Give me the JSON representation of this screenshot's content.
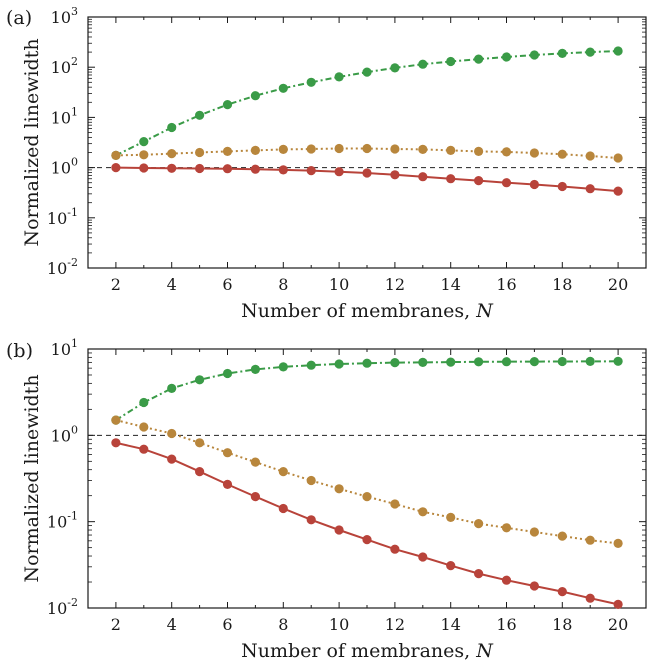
{
  "chart_data": [
    {
      "type": "line",
      "panel_label": "(a)",
      "xlabel": "Number of membranes, ",
      "xlabel_var": "N",
      "ylabel": "Normalized linewidth",
      "yscale": "log",
      "xlim": [
        1,
        21
      ],
      "ylim": [
        0.01,
        1000
      ],
      "x": [
        2,
        3,
        4,
        5,
        6,
        7,
        8,
        9,
        10,
        11,
        12,
        13,
        14,
        15,
        16,
        17,
        18,
        19,
        20
      ],
      "xticks": [
        "2",
        "4",
        "6",
        "8",
        "10",
        "12",
        "14",
        "16",
        "18",
        "20"
      ],
      "yticks": [
        {
          "base": "10",
          "exp": "-2"
        },
        {
          "base": "10",
          "exp": "-1"
        },
        {
          "base": "10",
          "exp": "0"
        },
        {
          "base": "10",
          "exp": "1"
        },
        {
          "base": "10",
          "exp": "2"
        },
        {
          "base": "10",
          "exp": "3"
        }
      ],
      "reference_line": 1,
      "grid": false,
      "series": [
        {
          "color": "#3a9b47",
          "style": "dashdot",
          "values": [
            1.75,
            3.3,
            6.3,
            11,
            18,
            27,
            38,
            50,
            64,
            80,
            97,
            115,
            130,
            145,
            160,
            175,
            188,
            200,
            210
          ]
        },
        {
          "color": "#b8863c",
          "style": "dotted",
          "values": [
            1.75,
            1.8,
            1.9,
            2.0,
            2.1,
            2.2,
            2.3,
            2.35,
            2.4,
            2.4,
            2.35,
            2.3,
            2.2,
            2.1,
            2.05,
            1.95,
            1.85,
            1.7,
            1.55
          ]
        },
        {
          "color": "#b8433a",
          "style": "solid",
          "values": [
            1.0,
            0.98,
            0.97,
            0.96,
            0.95,
            0.93,
            0.9,
            0.87,
            0.83,
            0.78,
            0.72,
            0.66,
            0.6,
            0.55,
            0.5,
            0.46,
            0.42,
            0.38,
            0.34
          ]
        }
      ]
    },
    {
      "type": "line",
      "panel_label": "(b)",
      "xlabel": "Number of membranes, ",
      "xlabel_var": "N",
      "ylabel": "Normalized linewidth",
      "yscale": "log",
      "xlim": [
        1,
        21
      ],
      "ylim": [
        0.01,
        10
      ],
      "x": [
        2,
        3,
        4,
        5,
        6,
        7,
        8,
        9,
        10,
        11,
        12,
        13,
        14,
        15,
        16,
        17,
        18,
        19,
        20
      ],
      "xticks": [
        "2",
        "4",
        "6",
        "8",
        "10",
        "12",
        "14",
        "16",
        "18",
        "20"
      ],
      "yticks": [
        {
          "base": "10",
          "exp": "-2"
        },
        {
          "base": "10",
          "exp": "-1"
        },
        {
          "base": "10",
          "exp": "0"
        },
        {
          "base": "10",
          "exp": "1"
        }
      ],
      "reference_line": 1,
      "grid": false,
      "series": [
        {
          "color": "#3a9b47",
          "style": "dashdot",
          "values": [
            1.5,
            2.4,
            3.5,
            4.4,
            5.2,
            5.8,
            6.2,
            6.5,
            6.7,
            6.85,
            6.95,
            7.0,
            7.05,
            7.1,
            7.12,
            7.15,
            7.17,
            7.18,
            7.2
          ]
        },
        {
          "color": "#b8863c",
          "style": "dotted",
          "values": [
            1.5,
            1.25,
            1.05,
            0.82,
            0.63,
            0.49,
            0.38,
            0.3,
            0.24,
            0.195,
            0.16,
            0.13,
            0.112,
            0.095,
            0.085,
            0.076,
            0.068,
            0.061,
            0.056
          ]
        },
        {
          "color": "#b8433a",
          "style": "solid",
          "values": [
            0.82,
            0.69,
            0.53,
            0.38,
            0.27,
            0.195,
            0.142,
            0.105,
            0.08,
            0.062,
            0.048,
            0.039,
            0.031,
            0.025,
            0.021,
            0.018,
            0.0155,
            0.013,
            0.011
          ]
        }
      ]
    }
  ]
}
